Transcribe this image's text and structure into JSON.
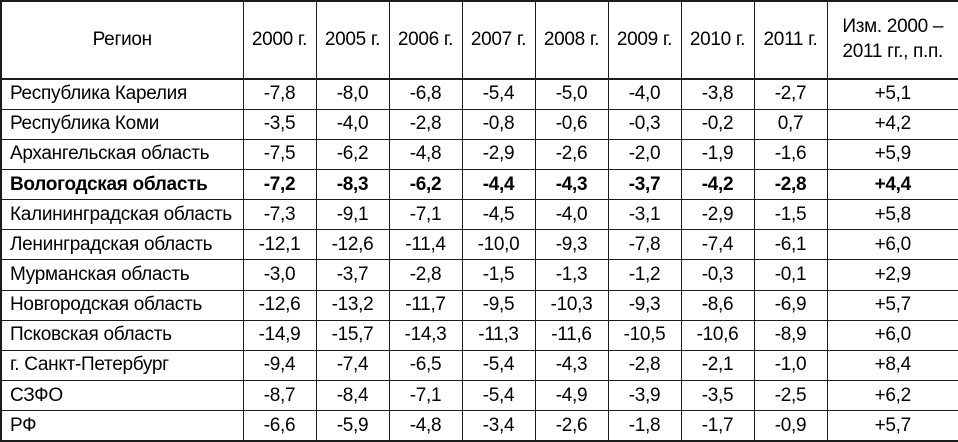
{
  "colors": {
    "border": "#1c1c1c",
    "text": "#000000",
    "background": "#ffffff"
  },
  "chart_data": {
    "type": "table",
    "title": "",
    "columns": [
      "Регион",
      "2000 г.",
      "2005 г.",
      "2006 г.",
      "2007 г.",
      "2008 г.",
      "2009 г.",
      "2010 г.",
      "2011 г.",
      "Изм. 2000 – 2011 гг., п.п."
    ],
    "rows": [
      {
        "region": "Республика Карелия",
        "bold": false,
        "values": [
          "-7,8",
          "-8,0",
          "-6,8",
          "-5,4",
          "-5,0",
          "-4,0",
          "-3,8",
          "-2,7",
          "+5,1"
        ]
      },
      {
        "region": "Республика Коми",
        "bold": false,
        "values": [
          "-3,5",
          "-4,0",
          "-2,8",
          "-0,8",
          "-0,6",
          "-0,3",
          "-0,2",
          "0,7",
          "+4,2"
        ]
      },
      {
        "region": "Архангельская область",
        "bold": false,
        "values": [
          "-7,5",
          "-6,2",
          "-4,8",
          "-2,9",
          "-2,6",
          "-2,0",
          "-1,9",
          "-1,6",
          "+5,9"
        ]
      },
      {
        "region": "Вологодская область",
        "bold": true,
        "values": [
          "-7,2",
          "-8,3",
          "-6,2",
          "-4,4",
          "-4,3",
          "-3,7",
          "-4,2",
          "-2,8",
          "+4,4"
        ]
      },
      {
        "region": "Калининградская область",
        "bold": false,
        "values": [
          "-7,3",
          "-9,1",
          "-7,1",
          "-4,5",
          "-4,0",
          "-3,1",
          "-2,9",
          "-1,5",
          "+5,8"
        ]
      },
      {
        "region": "Ленинградская область",
        "bold": false,
        "values": [
          "-12,1",
          "-12,6",
          "-11,4",
          "-10,0",
          "-9,3",
          "-7,8",
          "-7,4",
          "-6,1",
          "+6,0"
        ]
      },
      {
        "region": "Мурманская область",
        "bold": false,
        "values": [
          "-3,0",
          "-3,7",
          "-2,8",
          "-1,5",
          "-1,3",
          "-1,2",
          "-0,3",
          "-0,1",
          "+2,9"
        ]
      },
      {
        "region": "Новгородская область",
        "bold": false,
        "values": [
          "-12,6",
          "-13,2",
          "-11,7",
          "-9,5",
          "-10,3",
          "-9,3",
          "-8,6",
          "-6,9",
          "+5,7"
        ]
      },
      {
        "region": "Псковская область",
        "bold": false,
        "values": [
          "-14,9",
          "-15,7",
          "-14,3",
          "-11,3",
          "-11,6",
          "-10,5",
          "-10,6",
          "-8,9",
          "+6,0"
        ]
      },
      {
        "region": "г. Санкт-Петербург",
        "bold": false,
        "values": [
          "-9,4",
          "-7,4",
          "-6,5",
          "-5,4",
          "-4,3",
          "-2,8",
          "-2,1",
          "-1,0",
          "+8,4"
        ]
      },
      {
        "region": "СЗФО",
        "bold": false,
        "values": [
          "-8,7",
          "-8,4",
          "-7,1",
          "-5,4",
          "-4,9",
          "-3,9",
          "-3,5",
          "-2,5",
          "+6,2"
        ]
      },
      {
        "region": "РФ",
        "bold": false,
        "values": [
          "-6,6",
          "-5,9",
          "-4,8",
          "-3,4",
          "-2,6",
          "-1,8",
          "-1,7",
          "-0,9",
          "+5,7"
        ]
      }
    ]
  }
}
